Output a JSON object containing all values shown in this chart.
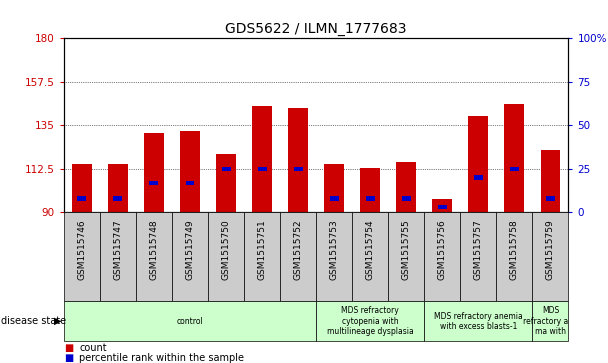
{
  "title": "GDS5622 / ILMN_1777683",
  "samples": [
    "GSM1515746",
    "GSM1515747",
    "GSM1515748",
    "GSM1515749",
    "GSM1515750",
    "GSM1515751",
    "GSM1515752",
    "GSM1515753",
    "GSM1515754",
    "GSM1515755",
    "GSM1515756",
    "GSM1515757",
    "GSM1515758",
    "GSM1515759"
  ],
  "counts": [
    115,
    115,
    131,
    132,
    120,
    145,
    144,
    115,
    113,
    116,
    97,
    140,
    146,
    122
  ],
  "percentile_ranks": [
    8,
    8,
    17,
    17,
    25,
    25,
    25,
    8,
    8,
    8,
    3,
    20,
    25,
    8
  ],
  "ymin": 90,
  "ymax": 180,
  "yticks": [
    90,
    112.5,
    135,
    157.5,
    180
  ],
  "ytick_labels": [
    "90",
    "112.5",
    "135",
    "157.5",
    "180"
  ],
  "right_ytick_values": [
    0,
    25,
    50,
    75,
    100
  ],
  "right_ytick_labels": [
    "0",
    "25",
    "50",
    "75",
    "100%"
  ],
  "bar_color": "#cc0000",
  "percentile_color": "#0000cc",
  "bar_width": 0.55,
  "tick_color": "#cc0000",
  "right_tick_color": "#0000cc",
  "disease_groups": [
    {
      "label": "control",
      "start": 0,
      "end": 7,
      "color": "#ccffcc"
    },
    {
      "label": "MDS refractory\ncytopenia with\nmultilineage dysplasia",
      "start": 7,
      "end": 10,
      "color": "#ccffcc"
    },
    {
      "label": "MDS refractory anemia\nwith excess blasts-1",
      "start": 10,
      "end": 13,
      "color": "#ccffcc"
    },
    {
      "label": "MDS\nrefractory ane\nma with",
      "start": 13,
      "end": 14,
      "color": "#ccffcc"
    }
  ],
  "disease_state_label": "disease state",
  "cell_bg_color": "#cccccc",
  "legend_items": [
    {
      "label": "count",
      "color": "#cc0000"
    },
    {
      "label": "percentile rank within the sample",
      "color": "#0000cc"
    }
  ],
  "bg_color": "#ffffff"
}
